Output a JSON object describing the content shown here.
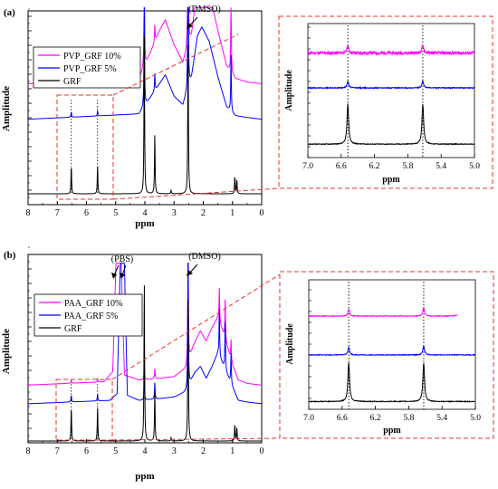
{
  "colors": {
    "high": "#ff00ff",
    "mid": "#0000ff",
    "base": "#000000",
    "inset_frame": "#e8302a",
    "axis": "#000000"
  },
  "chart_data": [
    {
      "type": "line",
      "panel_label": "(a)",
      "annotation": "(DMSO)",
      "xlabel": "ppm",
      "ylabel": "Amplitude",
      "xlim": [
        8,
        0
      ],
      "x_ticks": [
        8,
        7,
        6,
        5,
        4,
        3,
        2,
        1,
        0
      ],
      "grid": false,
      "legend_position": "top-left",
      "series": [
        {
          "name": "PVP_GRF 10%",
          "color": "#ff00ff",
          "offset": 0.62,
          "baseline": [
            [
              8,
              0
            ],
            [
              4.2,
              0.03
            ],
            [
              3.9,
              0.14
            ],
            [
              3.5,
              0.3
            ],
            [
              3.3,
              0.36
            ],
            [
              3.0,
              0.22
            ],
            [
              2.7,
              0.12
            ],
            [
              2.4,
              0.28
            ],
            [
              2.2,
              0.55
            ],
            [
              2.05,
              0.6
            ],
            [
              1.8,
              0.52
            ],
            [
              1.5,
              0.3
            ],
            [
              1.2,
              0.1
            ],
            [
              0.9,
              0.03
            ],
            [
              0.5,
              0.01
            ],
            [
              0,
              0
            ]
          ],
          "peaks": [
            [
              6.52,
              0.03
            ],
            [
              5.62,
              0.03
            ],
            [
              4.02,
              0.6
            ],
            [
              3.66,
              0.1
            ],
            [
              2.52,
              0.9
            ],
            [
              1.05,
              0.42
            ]
          ]
        },
        {
          "name": "PVP_GRF 5%",
          "color": "#0000ff",
          "offset": 0.42,
          "baseline": [
            [
              8,
              0
            ],
            [
              4.2,
              0.03
            ],
            [
              3.9,
              0.1
            ],
            [
              3.5,
              0.2
            ],
            [
              3.3,
              0.25
            ],
            [
              3.0,
              0.13
            ],
            [
              2.7,
              0.08
            ],
            [
              2.4,
              0.24
            ],
            [
              2.2,
              0.47
            ],
            [
              2.05,
              0.52
            ],
            [
              1.8,
              0.44
            ],
            [
              1.5,
              0.24
            ],
            [
              1.2,
              0.07
            ],
            [
              0.9,
              0.02
            ],
            [
              0.5,
              0.01
            ],
            [
              0,
              0
            ]
          ],
          "peaks": [
            [
              6.52,
              0.03
            ],
            [
              5.62,
              0.03
            ],
            [
              4.02,
              0.62
            ],
            [
              3.66,
              0.1
            ],
            [
              2.52,
              0.95
            ],
            [
              1.05,
              0.32
            ]
          ]
        },
        {
          "name": "GRF",
          "color": "#000000",
          "offset": 0.0,
          "baseline": [
            [
              8,
              0
            ],
            [
              0,
              0
            ]
          ],
          "peaks": [
            [
              6.52,
              0.16
            ],
            [
              5.62,
              0.16
            ],
            [
              4.02,
              0.92
            ],
            [
              3.66,
              0.34
            ],
            [
              3.1,
              0.02
            ],
            [
              2.52,
              0.95
            ],
            [
              0.92,
              0.1
            ],
            [
              0.85,
              0.08
            ]
          ]
        }
      ],
      "inset": {
        "xlabel": "ppm",
        "ylabel": "Amplitude",
        "xlim": [
          7.0,
          5.0
        ],
        "x_ticks": [
          "7.0",
          "6.6",
          "6.2",
          "5.8",
          "5.4",
          "5.0"
        ],
        "dotted_lines": [
          6.52,
          5.62
        ],
        "series": [
          {
            "name": "PVP_GRF 10%",
            "offset": 0.78,
            "noise": 0.012,
            "peaks": [
              [
                6.52,
                0.06
              ],
              [
                5.62,
                0.06
              ]
            ]
          },
          {
            "name": "PVP_GRF 5%",
            "offset": 0.52,
            "noise": 0.004,
            "peaks": [
              [
                6.52,
                0.05
              ],
              [
                5.62,
                0.05
              ]
            ]
          },
          {
            "name": "GRF",
            "offset": 0.1,
            "noise": 0.003,
            "peaks": [
              [
                6.52,
                0.3
              ],
              [
                5.62,
                0.3
              ]
            ]
          }
        ]
      }
    },
    {
      "type": "line",
      "panel_label": "(b)",
      "annotation": "(DMSO)",
      "annotation2": "(PBS)",
      "xlabel": "ppm",
      "ylabel": "Amplitude",
      "xlim": [
        8,
        0
      ],
      "x_ticks": [
        8,
        7,
        6,
        5,
        4,
        3,
        2,
        1,
        0
      ],
      "grid": false,
      "legend_position": "top-left",
      "series": [
        {
          "name": "PAA_GRF 10%",
          "color": "#ff00ff",
          "offset": 0.33,
          "baseline": [
            [
              8,
              0
            ],
            [
              5.4,
              0.02
            ],
            [
              5.1,
              0.08
            ],
            [
              4.95,
              0.95
            ],
            [
              4.85,
              0.95
            ],
            [
              4.7,
              0.06
            ],
            [
              4.2,
              0.03
            ],
            [
              3.5,
              0.04
            ],
            [
              3.0,
              0.05
            ],
            [
              2.6,
              0.1
            ],
            [
              2.3,
              0.25
            ],
            [
              2.1,
              0.32
            ],
            [
              1.9,
              0.26
            ],
            [
              1.7,
              0.34
            ],
            [
              1.5,
              0.4
            ],
            [
              1.3,
              0.3
            ],
            [
              1.0,
              0.12
            ],
            [
              0.8,
              0.03
            ],
            [
              0.5,
              0.01
            ],
            [
              0,
              0
            ]
          ],
          "peaks": [
            [
              6.52,
              0.02
            ],
            [
              5.62,
              0.02
            ],
            [
              4.02,
              0.08
            ],
            [
              3.66,
              0.06
            ],
            [
              2.52,
              0.75
            ],
            [
              1.45,
              0.2
            ],
            [
              1.25,
              0.25
            ],
            [
              1.05,
              0.12
            ]
          ]
        },
        {
          "name": "PAA_GRF 5%",
          "color": "#0000ff",
          "offset": 0.22,
          "baseline": [
            [
              8,
              0
            ],
            [
              5.2,
              0.02
            ],
            [
              4.95,
              0.06
            ],
            [
              4.82,
              0.98
            ],
            [
              4.72,
              0.98
            ],
            [
              4.6,
              0.05
            ],
            [
              4.2,
              0.02
            ],
            [
              3.5,
              0.03
            ],
            [
              3.0,
              0.04
            ],
            [
              2.6,
              0.07
            ],
            [
              2.3,
              0.18
            ],
            [
              2.1,
              0.22
            ],
            [
              1.9,
              0.15
            ],
            [
              1.7,
              0.22
            ],
            [
              1.5,
              0.3
            ],
            [
              1.3,
              0.22
            ],
            [
              1.0,
              0.1
            ],
            [
              0.8,
              0.02
            ],
            [
              0.5,
              0.01
            ],
            [
              0,
              0
            ]
          ],
          "peaks": [
            [
              6.52,
              0.04
            ],
            [
              5.62,
              0.04
            ],
            [
              4.02,
              0.12
            ],
            [
              3.66,
              0.1
            ],
            [
              2.52,
              0.85
            ],
            [
              1.45,
              0.28
            ],
            [
              1.25,
              0.3
            ],
            [
              1.05,
              0.18
            ]
          ]
        },
        {
          "name": "GRF",
          "color": "#000000",
          "offset": 0.0,
          "baseline": [
            [
              8,
              0
            ],
            [
              0,
              0
            ]
          ],
          "peaks": [
            [
              6.52,
              0.2
            ],
            [
              5.62,
              0.2
            ],
            [
              4.02,
              0.95
            ],
            [
              3.66,
              0.3
            ],
            [
              3.1,
              0.02
            ],
            [
              2.52,
              0.95
            ],
            [
              0.92,
              0.1
            ],
            [
              0.85,
              0.08
            ]
          ]
        }
      ],
      "inset": {
        "xlabel": "ppm",
        "ylabel": "Amplitude",
        "xlim": [
          7.0,
          5.0
        ],
        "x_ticks": [
          "7.0",
          "6.6",
          "6.2",
          "5.8",
          "5.4",
          "5.0"
        ],
        "dotted_lines": [
          6.52,
          5.62
        ],
        "series": [
          {
            "name": "PAA_GRF 10%",
            "offset": 0.72,
            "noise": 0.003,
            "peaks": [
              [
                6.52,
                0.05
              ],
              [
                5.62,
                0.07
              ]
            ],
            "tail": true
          },
          {
            "name": "PAA_GRF 5%",
            "offset": 0.42,
            "noise": 0.003,
            "peaks": [
              [
                6.52,
                0.06
              ],
              [
                5.62,
                0.07
              ]
            ]
          },
          {
            "name": "GRF",
            "offset": 0.06,
            "noise": 0.003,
            "peaks": [
              [
                6.52,
                0.3
              ],
              [
                5.62,
                0.3
              ]
            ]
          }
        ]
      }
    }
  ]
}
